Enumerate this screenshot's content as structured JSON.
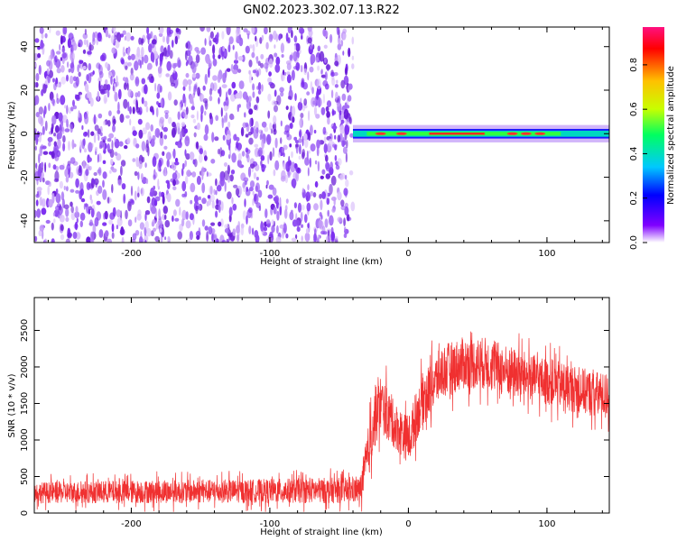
{
  "title": "GN02.2023.302.07.13.R22",
  "colors": {
    "snr_line": "#f03030",
    "scatter": "#7b2cf0",
    "frame": "#000000"
  },
  "chart_data": [
    {
      "type": "heatmap",
      "xlabel": "Height of straight line (km)",
      "ylabel": "Frequency (Hz)",
      "xlim": [
        -270,
        145
      ],
      "ylim": [
        -50,
        49
      ],
      "x_ticks": [
        -200,
        -100,
        0,
        100
      ],
      "x_tick_labels": [
        "-200",
        "-100",
        "0",
        "100"
      ],
      "y_ticks": [
        -40,
        -20,
        0,
        20,
        40
      ],
      "y_tick_labels": [
        "-40",
        "-20",
        "0",
        "20",
        "40"
      ],
      "colorbar": {
        "label": "Normalized spectral amplitude",
        "range": [
          0,
          0.97
        ],
        "ticks": [
          0.0,
          0.2,
          0.4,
          0.6,
          0.8
        ],
        "tick_labels": [
          "0.0",
          "0.2",
          "0.4",
          "0.6",
          "0.8"
        ],
        "colormap": [
          "#ffffff",
          "#8000ff",
          "#0000ff",
          "#00c8ff",
          "#00ff60",
          "#c8ff00",
          "#ffc000",
          "#ff0000",
          "#ff1080"
        ]
      },
      "regions": {
        "noise_x_range": [
          -270,
          -40
        ],
        "signal_x_range": [
          -40,
          145
        ],
        "signal_frequency": 0,
        "signal_bandwidth": 4
      }
    },
    {
      "type": "line",
      "xlabel": "Height of straight line (km)",
      "ylabel": "SNR (10 * v/v)",
      "xlim": [
        -270,
        145
      ],
      "ylim": [
        0,
        2950
      ],
      "x_ticks": [
        -200,
        -100,
        0,
        100
      ],
      "x_tick_labels": [
        "-200",
        "-100",
        "0",
        "100"
      ],
      "y_ticks": [
        0,
        500,
        1000,
        1500,
        2000,
        2500
      ],
      "y_tick_labels": [
        "0",
        "500",
        "1000",
        "1500",
        "2000",
        "2500"
      ],
      "envelope": {
        "x": [
          -270,
          -200,
          -120,
          -60,
          -35,
          -30,
          -25,
          -20,
          -10,
          0,
          10,
          25,
          40,
          55,
          70,
          90,
          110,
          130,
          145
        ],
        "mean": [
          280,
          290,
          300,
          310,
          310,
          700,
          1250,
          1500,
          1200,
          1000,
          1550,
          1950,
          2050,
          2050,
          1950,
          1850,
          1750,
          1650,
          1600
        ],
        "spread": [
          180,
          200,
          200,
          220,
          220,
          450,
          500,
          500,
          400,
          400,
          450,
          450,
          450,
          450,
          450,
          400,
          400,
          400,
          380
        ]
      }
    }
  ]
}
